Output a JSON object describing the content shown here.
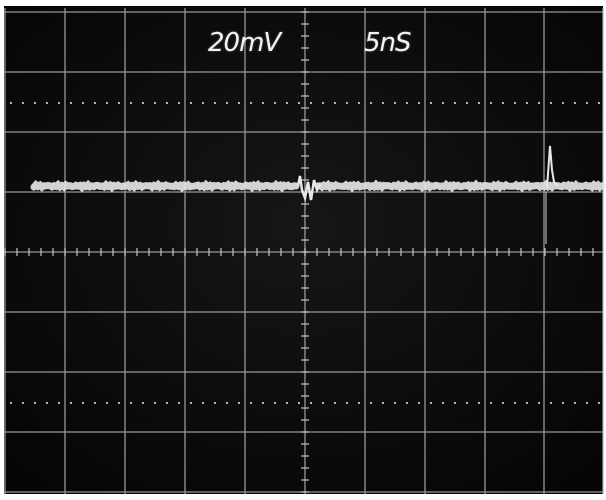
{
  "readouts": {
    "volts_per_div": "20mV",
    "time_per_div": "5nS"
  },
  "colors": {
    "screen": "#0b0b0b",
    "graticule": "#b5b5b5",
    "trace": "#e6e6e6",
    "bezel": "#ffffff"
  }
}
